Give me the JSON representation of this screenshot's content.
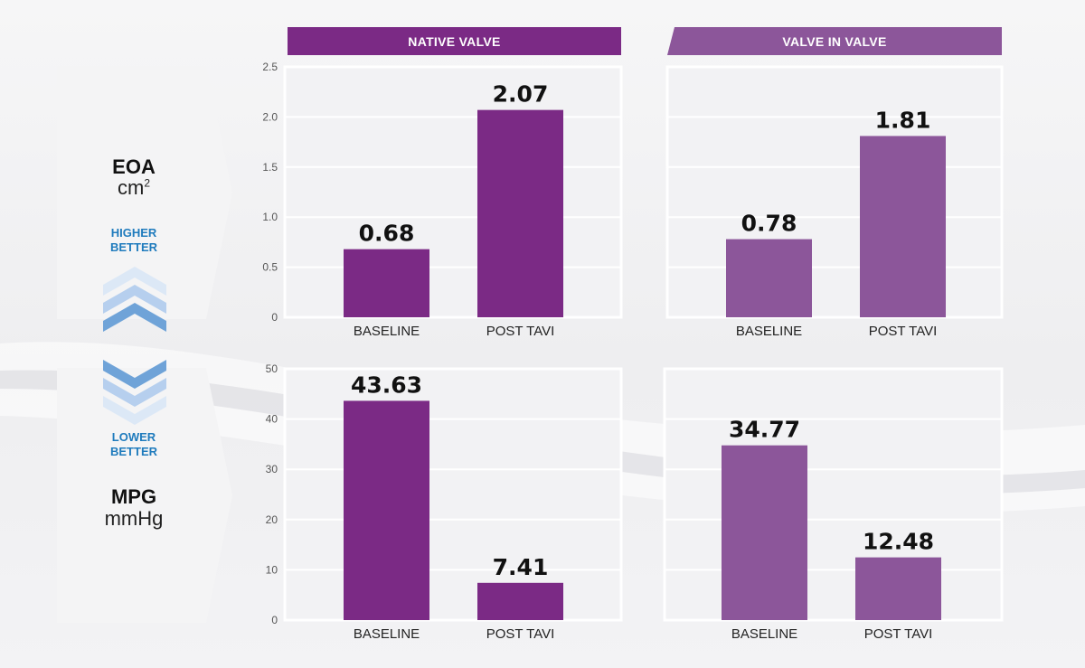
{
  "headers": {
    "native": "NATIVE VALVE",
    "viv": "VALVE IN VALVE"
  },
  "metrics": {
    "eoa": {
      "name": "EOA",
      "unit_base": "cm",
      "unit_sup": "2",
      "hint_line1": "HIGHER",
      "hint_line2": "BETTER"
    },
    "mpg": {
      "name": "MPG",
      "unit": "mmHg",
      "hint_line1": "LOWER",
      "hint_line2": "BETTER"
    }
  },
  "colors": {
    "native": "#7b2a85",
    "viv": "#8c569a",
    "hint": "#1f7bbd",
    "chevron_dark": "#6fa3d8",
    "chevron_light": "#c9dcf2"
  },
  "icons": [
    "chevron-up-icon",
    "chevron-down-icon"
  ],
  "chart_data": [
    {
      "type": "bar",
      "categories": [
        "BASELINE",
        "POST TAVI"
      ],
      "values": [
        0.68,
        2.07
      ],
      "value_labels": [
        "0.68",
        "2.07"
      ],
      "ylim": [
        0,
        2.5
      ],
      "yticks": [
        "0",
        "0.5",
        "1.0",
        "1.5",
        "2.0",
        "2.5"
      ],
      "color": "#7b2a85"
    },
    {
      "type": "bar",
      "categories": [
        "BASELINE",
        "POST TAVI"
      ],
      "values": [
        0.78,
        1.81
      ],
      "value_labels": [
        "0.78",
        "1.81"
      ],
      "ylim": [
        0,
        2.5
      ],
      "yticks": [],
      "color": "#8c569a"
    },
    {
      "type": "bar",
      "categories": [
        "BASELINE",
        "POST TAVI"
      ],
      "values": [
        43.63,
        7.41
      ],
      "value_labels": [
        "43.63",
        "7.41"
      ],
      "ylim": [
        0,
        50
      ],
      "yticks": [
        "0",
        "10",
        "20",
        "30",
        "40",
        "50"
      ],
      "color": "#7b2a85"
    },
    {
      "type": "bar",
      "categories": [
        "BASELINE",
        "POST TAVI"
      ],
      "values": [
        34.77,
        12.48
      ],
      "value_labels": [
        "34.77",
        "12.48"
      ],
      "ylim": [
        0,
        50
      ],
      "yticks": [],
      "color": "#8c569a"
    }
  ]
}
